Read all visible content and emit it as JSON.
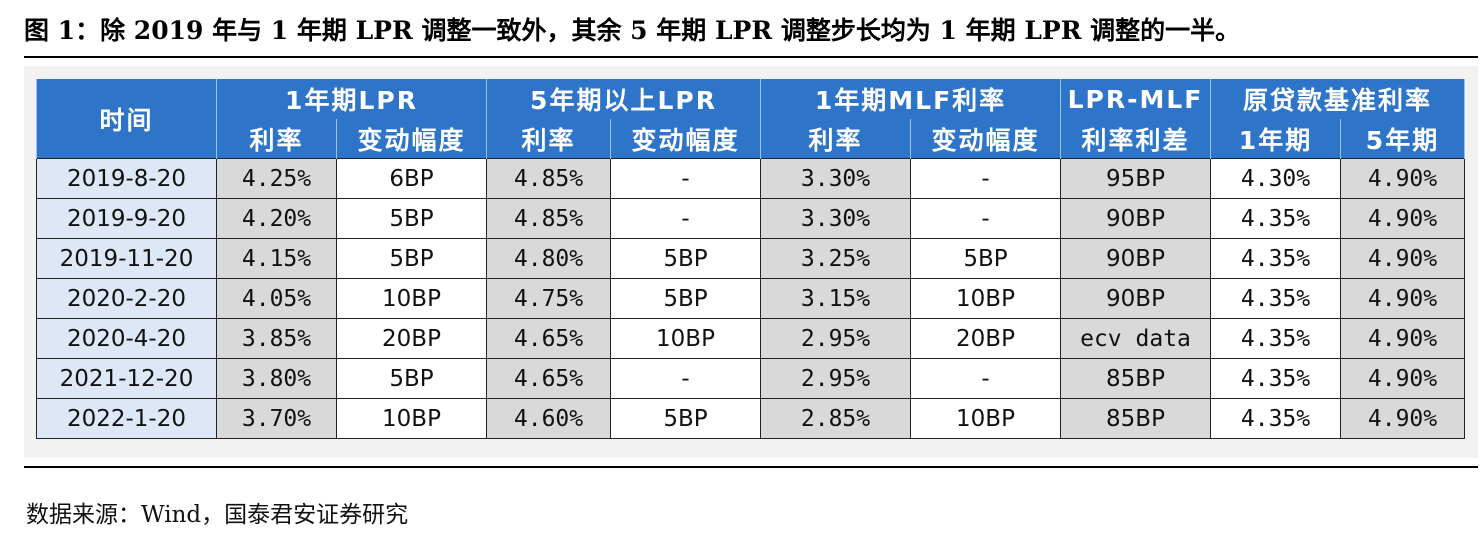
{
  "title": "图 1：除 2019 年与 1 年期 LPR 调整一致外，其余 5 年期 LPR 调整步长均为 1 年期 LPR 调整的一半。",
  "table": {
    "header_groups": [
      "时间",
      "1年期LPR",
      "5年期以上LPR",
      "1年期MLF利率",
      "LPR-MLF",
      "原贷款基准利率"
    ],
    "subheaders": [
      "利率",
      "变动幅度",
      "利率",
      "变动幅度",
      "利率",
      "变动幅度",
      "利率利差",
      "1年期",
      "5年期"
    ],
    "rows": [
      [
        "2019-8-20",
        "4.25%",
        "6BP",
        "4.85%",
        "-",
        "3.30%",
        "-",
        "95BP",
        "4.30%",
        "4.90%"
      ],
      [
        "2019-9-20",
        "4.20%",
        "5BP",
        "4.85%",
        "-",
        "3.30%",
        "-",
        "90BP",
        "4.35%",
        "4.90%"
      ],
      [
        "2019-11-20",
        "4.15%",
        "5BP",
        "4.80%",
        "5BP",
        "3.25%",
        "5BP",
        "90BP",
        "4.35%",
        "4.90%"
      ],
      [
        "2020-2-20",
        "4.05%",
        "10BP",
        "4.75%",
        "5BP",
        "3.15%",
        "10BP",
        "90BP",
        "4.35%",
        "4.90%"
      ],
      [
        "2020-4-20",
        "3.85%",
        "20BP",
        "4.65%",
        "10BP",
        "2.95%",
        "20BP",
        "ecv data",
        "4.35%",
        "4.90%"
      ],
      [
        "2021-12-20",
        "3.80%",
        "5BP",
        "4.65%",
        "-",
        "2.95%",
        "-",
        "85BP",
        "4.35%",
        "4.90%"
      ],
      [
        "2022-1-20",
        "3.70%",
        "10BP",
        "4.60%",
        "5BP",
        "2.85%",
        "10BP",
        "85BP",
        "4.35%",
        "4.90%"
      ]
    ]
  },
  "source": "数据来源：Wind，国泰君安证券研究",
  "colors": {
    "header_bg": "#2e75c9",
    "header_text": "#ffffff",
    "date_cell_bg": "#dde7f5",
    "shaded_cell_bg": "#d9d9d9",
    "panel_bg": "#f2f2f2"
  }
}
